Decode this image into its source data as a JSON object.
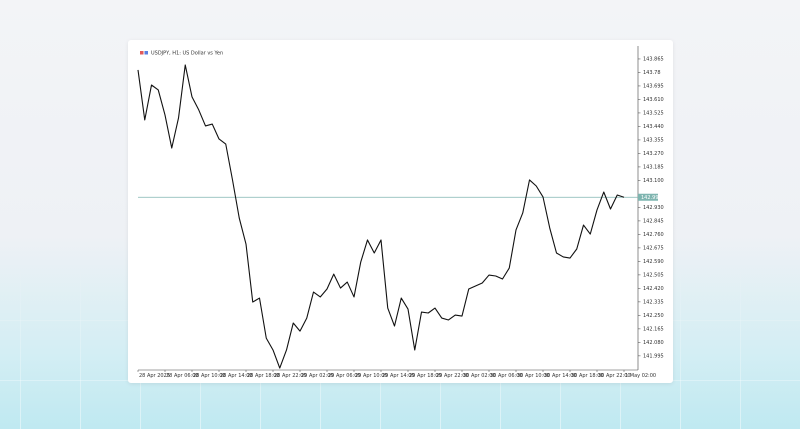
{
  "chart_data": {
    "type": "line",
    "title": "USDJPY, H1:  US Dollar vs Yen",
    "categories": [
      "28 Apr 2025",
      null,
      null,
      null,
      "28 Apr 06:00",
      null,
      null,
      null,
      "28 Apr 10:00",
      null,
      null,
      null,
      "28 Apr 14:00",
      null,
      null,
      null,
      "28 Apr 18:00",
      null,
      null,
      null,
      "28 Apr 22:00",
      null,
      null,
      null,
      "29 Apr 02:00",
      null,
      null,
      null,
      "29 Apr 06:00",
      null,
      null,
      null,
      "29 Apr 10:00",
      null,
      null,
      null,
      "29 Apr 14:00",
      null,
      null,
      null,
      "29 Apr 18:00",
      null,
      null,
      null,
      "29 Apr 22:00",
      null,
      null,
      null,
      "30 Apr 02:00",
      null,
      null,
      null,
      "30 Apr 06:00",
      null,
      null,
      null,
      "30 Apr 10:00",
      null,
      null,
      null,
      "30 Apr 14:00",
      null,
      null,
      null,
      "30 Apr 18:00",
      null,
      null,
      null,
      "30 Apr 22:00",
      null,
      null,
      null,
      "1 May 02:00"
    ],
    "values": [
      143.796,
      143.481,
      143.701,
      143.67,
      143.512,
      143.304,
      143.493,
      143.827,
      143.626,
      143.544,
      143.443,
      143.455,
      143.361,
      143.329,
      143.103,
      142.863,
      142.699,
      142.334,
      142.359,
      142.107,
      142.032,
      141.918,
      142.032,
      142.202,
      142.151,
      142.233,
      142.397,
      142.366,
      142.416,
      142.51,
      142.422,
      142.46,
      142.366,
      142.586,
      142.725,
      142.643,
      142.725,
      142.296,
      142.183,
      142.359,
      142.29,
      142.032,
      142.271,
      142.265,
      142.296,
      142.233,
      142.221,
      142.252,
      142.246,
      142.416,
      142.435,
      142.454,
      142.504,
      142.498,
      142.479,
      142.548,
      142.788,
      142.895,
      143.103,
      143.065,
      142.996,
      142.8,
      142.643,
      142.618,
      142.611,
      142.668,
      142.819,
      142.762,
      142.914,
      143.027,
      142.92,
      143.008,
      142.994
    ],
    "color": "#111111",
    "last_price": 142.994,
    "last_price_color": "#7fb5b0",
    "ylim": [
      141.906,
      143.934
    ],
    "yticks": [
      143.865,
      143.78,
      143.695,
      {
        "value": 143.61,
        "label": "143.610"
      },
      143.525,
      {
        "value": 143.44,
        "label": "143.440"
      },
      143.355,
      {
        "value": 143.27,
        "label": "143.270"
      },
      143.185,
      {
        "value": 143.1,
        "label": "143.100"
      },
      {
        "value": 142.93,
        "label": "142.930"
      },
      142.845,
      {
        "value": 142.76,
        "label": "142.760"
      },
      142.675,
      {
        "value": 142.59,
        "label": "142.590"
      },
      142.505,
      {
        "value": 142.42,
        "label": "142.420"
      },
      142.335,
      {
        "value": 142.25,
        "label": "142.250"
      },
      142.165,
      {
        "value": 142.08,
        "label": "142.080"
      },
      141.995
    ],
    "grid": false
  }
}
